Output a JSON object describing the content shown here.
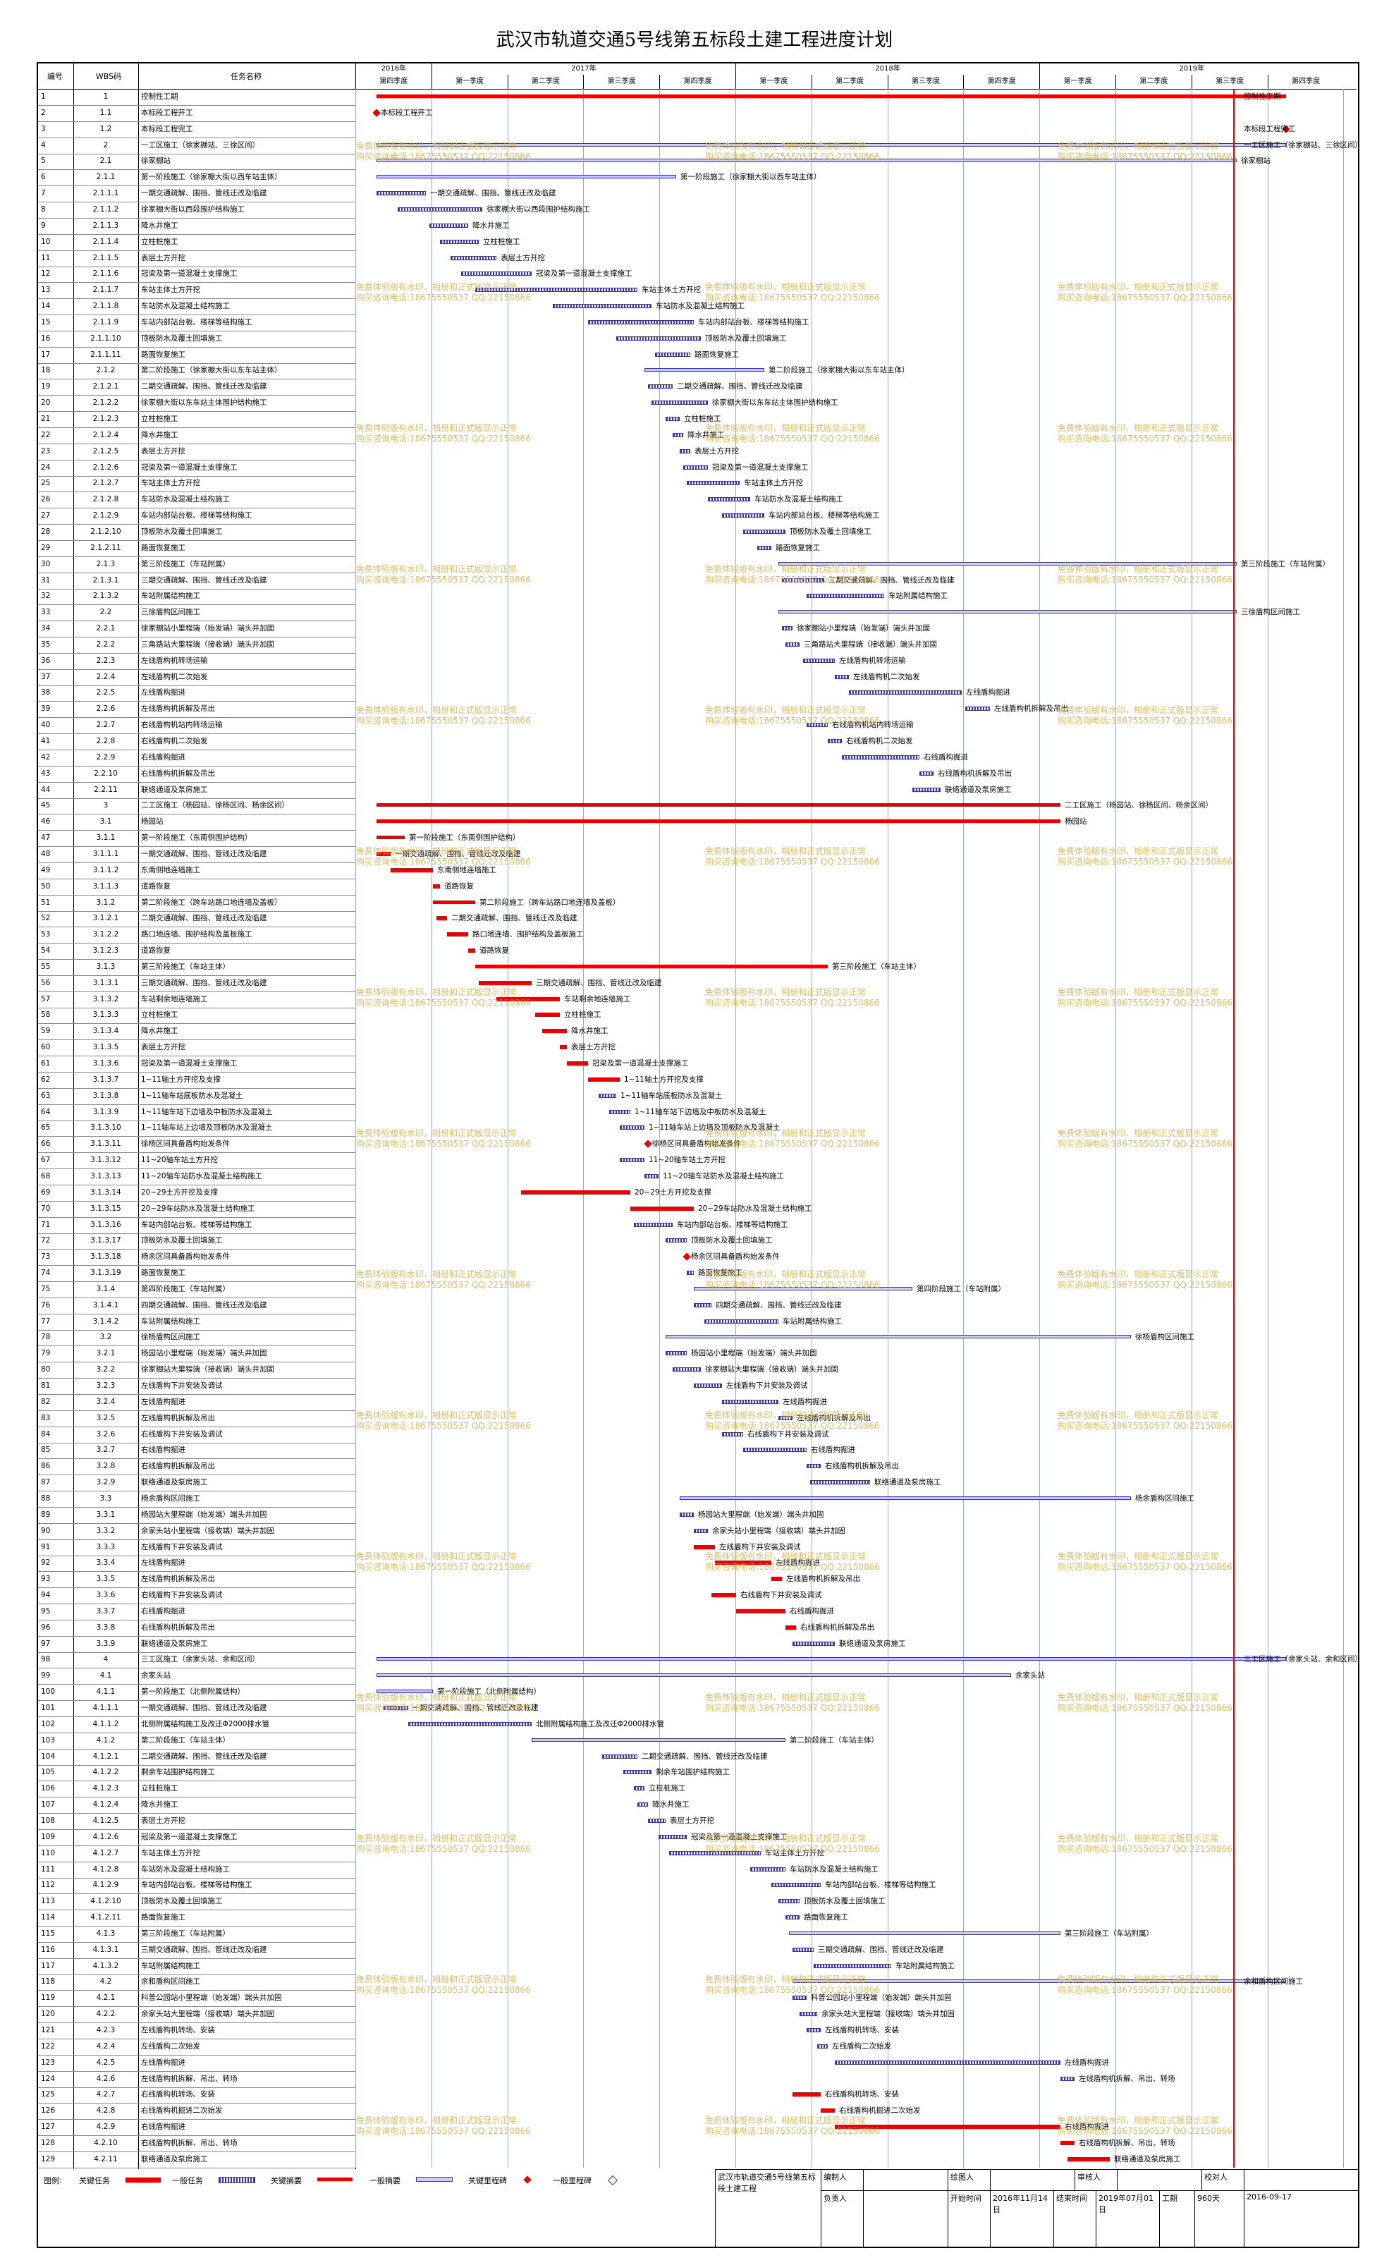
{
  "title": "武汉市轨道交通5号线第五标段土建工程进度计划",
  "header": {
    "code": "编号",
    "wbs": "WBS码",
    "name": "任务名称"
  },
  "years": [
    "2016年",
    "2017年",
    "2018年",
    "2019年"
  ],
  "quarters": [
    "第四季度",
    "第一季度",
    "第二季度",
    "第三季度",
    "第四季度",
    "第一季度",
    "第二季度",
    "第三季度",
    "第四季度",
    "第一季度",
    "第二季度",
    "第三季度",
    "第四季度"
  ],
  "tasks": [
    [
      "1",
      "1",
      "控制性工期"
    ],
    [
      "2",
      "1.1",
      "本标段工程开工"
    ],
    [
      "3",
      "1.2",
      "本标段工程完工"
    ],
    [
      "4",
      "2",
      "一工区施工（徐家棚站、三徐区间）"
    ],
    [
      "5",
      "2.1",
      "徐家棚站"
    ],
    [
      "6",
      "2.1.1",
      "第一阶段施工（徐家棚大街以西车站主体）"
    ],
    [
      "7",
      "2.1.1.1",
      "一期交通疏解、围挡、管线迁改及临建"
    ],
    [
      "8",
      "2.1.1.2",
      "徐家棚大街以西段围护结构施工"
    ],
    [
      "9",
      "2.1.1.3",
      "降水井施工"
    ],
    [
      "10",
      "2.1.1.4",
      "立柱桩施工"
    ],
    [
      "11",
      "2.1.1.5",
      "表层土方开挖"
    ],
    [
      "12",
      "2.1.1.6",
      "冠梁及第一道混凝土支撑施工"
    ],
    [
      "13",
      "2.1.1.7",
      "车站主体土方开挖"
    ],
    [
      "14",
      "2.1.1.8",
      "车站防水及混凝土结构施工"
    ],
    [
      "15",
      "2.1.1.9",
      "车站内部站台板、楼梯等结构施工"
    ],
    [
      "16",
      "2.1.1.10",
      "顶板防水及覆土回填施工"
    ],
    [
      "17",
      "2.1.1.11",
      "路面恢复施工"
    ],
    [
      "18",
      "2.1.2",
      "第二阶段施工（徐家棚大街以东车站主体）"
    ],
    [
      "19",
      "2.1.2.1",
      "二期交通疏解、围挡、管线迁改及临建"
    ],
    [
      "20",
      "2.1.2.2",
      "徐家棚大街以东车站主体围护结构施工"
    ],
    [
      "21",
      "2.1.2.3",
      "立柱桩施工"
    ],
    [
      "22",
      "2.1.2.4",
      "降水井施工"
    ],
    [
      "23",
      "2.1.2.5",
      "表层土方开挖"
    ],
    [
      "24",
      "2.1.2.6",
      "冠梁及第一道混凝土支撑施工"
    ],
    [
      "25",
      "2.1.2.7",
      "车站主体土方开挖"
    ],
    [
      "26",
      "2.1.2.8",
      "车站防水及混凝土结构施工"
    ],
    [
      "27",
      "2.1.2.9",
      "车站内部站台板、楼梯等结构施工"
    ],
    [
      "28",
      "2.1.2.10",
      "顶板防水及覆土回填施工"
    ],
    [
      "29",
      "2.1.2.11",
      "路面恢复施工"
    ],
    [
      "30",
      "2.1.3",
      "第三阶段施工（车站附属）"
    ],
    [
      "31",
      "2.1.3.1",
      "三期交通疏解、围挡、管线迁改及临建"
    ],
    [
      "32",
      "2.1.3.2",
      "车站附属结构施工"
    ],
    [
      "33",
      "2.2",
      "三徐盾构区间施工"
    ],
    [
      "34",
      "2.2.1",
      "徐家棚站小里程端（始发端）端头井加固"
    ],
    [
      "35",
      "2.2.2",
      "三角路站大里程端（接收端）端头井加固"
    ],
    [
      "36",
      "2.2.3",
      "左线盾构机转场运输"
    ],
    [
      "37",
      "2.2.4",
      "左线盾构机二次始发"
    ],
    [
      "38",
      "2.2.5",
      "左线盾构掘进"
    ],
    [
      "39",
      "2.2.6",
      "左线盾构机拆解及吊出"
    ],
    [
      "40",
      "2.2.7",
      "右线盾构机站内转场运输"
    ],
    [
      "41",
      "2.2.8",
      "右线盾构机二次始发"
    ],
    [
      "42",
      "2.2.9",
      "右线盾构掘进"
    ],
    [
      "43",
      "2.2.10",
      "右线盾构机拆解及吊出"
    ],
    [
      "44",
      "2.2.11",
      "联络通道及泵房施工"
    ],
    [
      "45",
      "3",
      "二工区施工（杨园站、徐杨区间、杨余区间）"
    ],
    [
      "46",
      "3.1",
      "杨园站"
    ],
    [
      "47",
      "3.1.1",
      "第一阶段施工（东南侧围护结构）"
    ],
    [
      "48",
      "3.1.1.1",
      "一期交通疏解、围挡、管线迁改及临建"
    ],
    [
      "49",
      "3.1.1.2",
      "东南侧地连墙施工"
    ],
    [
      "50",
      "3.1.1.3",
      "道路恢复"
    ],
    [
      "51",
      "3.1.2",
      "第二阶段施工（跨车站路口地连墙及盖板）"
    ],
    [
      "52",
      "3.1.2.1",
      "二期交通疏解、围挡、管线迁改及临建"
    ],
    [
      "53",
      "3.1.2.2",
      "路口地连墙、围护结构及盖板施工"
    ],
    [
      "54",
      "3.1.2.3",
      "道路恢复"
    ],
    [
      "55",
      "3.1.3",
      "第三阶段施工（车站主体）"
    ],
    [
      "56",
      "3.1.3.1",
      "三期交通疏解、围挡、管线迁改及临建"
    ],
    [
      "57",
      "3.1.3.2",
      "车站剩余地连墙施工"
    ],
    [
      "58",
      "3.1.3.3",
      "立柱桩施工"
    ],
    [
      "59",
      "3.1.3.4",
      "降水井施工"
    ],
    [
      "60",
      "3.1.3.5",
      "表层土方开挖"
    ],
    [
      "61",
      "3.1.3.6",
      "冠梁及第一道混凝土支撑施工"
    ],
    [
      "62",
      "3.1.3.7",
      "1~11轴土方开挖及支撑"
    ],
    [
      "63",
      "3.1.3.8",
      "1~11轴车站底板防水及混凝土"
    ],
    [
      "64",
      "3.1.3.9",
      "1~11轴车站下边墙及中板防水及混凝土"
    ],
    [
      "65",
      "3.1.3.10",
      "1~11轴车站上边墙及顶板防水及混凝土"
    ],
    [
      "66",
      "3.1.3.11",
      "徐杨区间具备盾构始发条件"
    ],
    [
      "67",
      "3.1.3.12",
      "11~20轴车站土方开挖"
    ],
    [
      "68",
      "3.1.3.13",
      "11~20轴车站防水及混凝土结构施工"
    ],
    [
      "69",
      "3.1.3.14",
      "20~29土方开挖及支撑"
    ],
    [
      "70",
      "3.1.3.15",
      "20~29车站防水及混凝土结构施工"
    ],
    [
      "71",
      "3.1.3.16",
      "车站内部站台板、楼梯等结构施工"
    ],
    [
      "72",
      "3.1.3.17",
      "顶板防水及覆土回填施工"
    ],
    [
      "73",
      "3.1.3.18",
      "杨余区间具备盾构始发条件"
    ],
    [
      "74",
      "3.1.3.19",
      "路面恢复施工"
    ],
    [
      "75",
      "3.1.4",
      "第四阶段施工（车站附属）"
    ],
    [
      "76",
      "3.1.4.1",
      "四期交通疏解、围挡、管线迁改及临建"
    ],
    [
      "77",
      "3.1.4.2",
      "车站附属结构施工"
    ],
    [
      "78",
      "3.2",
      "徐杨盾构区间施工"
    ],
    [
      "79",
      "3.2.1",
      "杨园站小里程端（始发端）端头井加固"
    ],
    [
      "80",
      "3.2.2",
      "徐家棚站大里程端（接收端）端头井加固"
    ],
    [
      "81",
      "3.2.3",
      "左线盾构下井安装及调试"
    ],
    [
      "82",
      "3.2.4",
      "左线盾构掘进"
    ],
    [
      "83",
      "3.2.5",
      "左线盾构机拆解及吊出"
    ],
    [
      "84",
      "3.2.6",
      "右线盾构下井安装及调试"
    ],
    [
      "85",
      "3.2.7",
      "右线盾构掘进"
    ],
    [
      "86",
      "3.2.8",
      "右线盾构机拆解及吊出"
    ],
    [
      "87",
      "3.2.9",
      "联络通道及泵房施工"
    ],
    [
      "88",
      "3.3",
      "杨余盾构区间施工"
    ],
    [
      "89",
      "3.3.1",
      "杨园站大里程端（始发端）端头井加固"
    ],
    [
      "90",
      "3.3.2",
      "余家头站小里程端（接收端）端头井加固"
    ],
    [
      "91",
      "3.3.3",
      "左线盾构下井安装及调试"
    ],
    [
      "92",
      "3.3.4",
      "左线盾构掘进"
    ],
    [
      "93",
      "3.3.5",
      "左线盾构机拆解及吊出"
    ],
    [
      "94",
      "3.3.6",
      "右线盾构下井安装及调试"
    ],
    [
      "95",
      "3.3.7",
      "右线盾构掘进"
    ],
    [
      "96",
      "3.3.8",
      "右线盾构机拆解及吊出"
    ],
    [
      "97",
      "3.3.9",
      "联络通道及泵房施工"
    ],
    [
      "98",
      "4",
      "三工区施工（余家头站、余和区间）"
    ],
    [
      "99",
      "4.1",
      "余家头站"
    ],
    [
      "100",
      "4.1.1",
      "第一阶段施工（北侧附属结构）"
    ],
    [
      "101",
      "4.1.1.1",
      "一期交通疏解、围挡、管线迁改及临建"
    ],
    [
      "102",
      "4.1.1.2",
      "北侧附属结构施工及改迁Φ2000排水管"
    ],
    [
      "103",
      "4.1.2",
      "第二阶段施工（车站主体）"
    ],
    [
      "104",
      "4.1.2.1",
      "二期交通疏解、围挡、管线迁改及临建"
    ],
    [
      "105",
      "4.1.2.2",
      "剩余车站围护结构施工"
    ],
    [
      "106",
      "4.1.2.3",
      "立柱桩施工"
    ],
    [
      "107",
      "4.1.2.4",
      "降水井施工"
    ],
    [
      "108",
      "4.1.2.5",
      "表层土方开挖"
    ],
    [
      "109",
      "4.1.2.6",
      "冠梁及第一道混凝土支撑施工"
    ],
    [
      "110",
      "4.1.2.7",
      "车站主体土方开挖"
    ],
    [
      "111",
      "4.1.2.8",
      "车站防水及混凝土结构施工"
    ],
    [
      "112",
      "4.1.2.9",
      "车站内部站台板、楼梯等结构施工"
    ],
    [
      "113",
      "4.1.2.10",
      "顶板防水及覆土回填施工"
    ],
    [
      "114",
      "4.1.2.11",
      "路面恢复施工"
    ],
    [
      "115",
      "4.1.3",
      "第三阶段施工（车站附属）"
    ],
    [
      "116",
      "4.1.3.1",
      "三期交通疏解、围挡、管线迁改及临建"
    ],
    [
      "117",
      "4.1.3.2",
      "车站附属结构施工"
    ],
    [
      "118",
      "4.2",
      "余和盾构区间施工"
    ],
    [
      "119",
      "4.2.1",
      "科普公园站小里程端（始发端）端头井加固"
    ],
    [
      "120",
      "4.2.2",
      "余家头站大里程端（接收端）端头井加固"
    ],
    [
      "121",
      "4.2.3",
      "左线盾构机转场、安装"
    ],
    [
      "122",
      "4.2.4",
      "左线盾构二次始发"
    ],
    [
      "123",
      "4.2.5",
      "左线盾构掘进"
    ],
    [
      "124",
      "4.2.6",
      "左线盾构机拆解、吊出、转场"
    ],
    [
      "125",
      "4.2.7",
      "右线盾构机转场、安装"
    ],
    [
      "126",
      "4.2.8",
      "右线盾构机掘进二次始发"
    ],
    [
      "127",
      "4.2.9",
      "右线盾构掘进"
    ],
    [
      "128",
      "4.2.10",
      "右线盾构机拆解、吊出、转场"
    ],
    [
      "129",
      "4.2.11",
      "联络通道及泵房施工"
    ]
  ],
  "watermark": {
    "line1": "免费体验版有水印，相册和正式版显示正常",
    "line2": "购买咨询电话:18675550537 QQ:22150866"
  },
  "legend": {
    "label": "图例:",
    "items": [
      "关键任务",
      "一般任务",
      "关键摘要",
      "一般摘要",
      "关键里程碑",
      "一般里程碑"
    ]
  },
  "sign": {
    "project": "武汉市轨道交通5号线第五标段土建工程",
    "prepared": "编制人",
    "drawn": "绘图人",
    "reviewer": "审核人",
    "checker": "校对人",
    "owner": "负责人",
    "start_label": "开始时间",
    "start": "2016年11月14日",
    "end_label": "结束时间",
    "end": "2019年07月01日",
    "duration_label": "工期",
    "duration": "960天",
    "date": "2016-09-17"
  },
  "colors": {
    "critical": "#ee0000",
    "normal": "#3333cc",
    "watermark": "#d9b23e"
  }
}
